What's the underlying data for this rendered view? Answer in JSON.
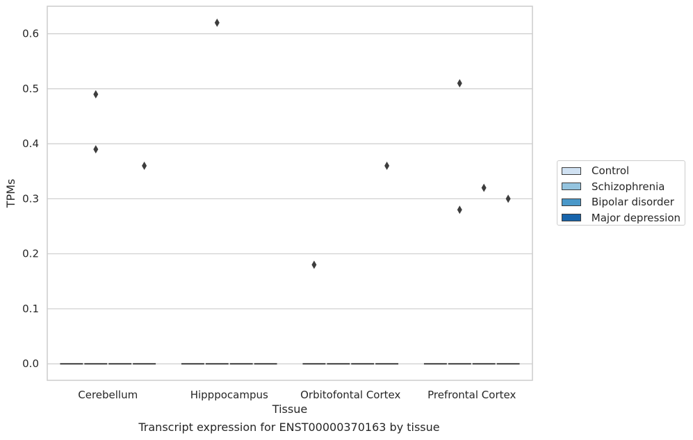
{
  "chart_data": {
    "type": "box",
    "title": "Transcript expression for ENST00000370163 by tissue",
    "xlabel": "Tissue",
    "ylabel": "TPMs",
    "ylim": [
      -0.03,
      0.65
    ],
    "yticks": [
      0.0,
      0.1,
      0.2,
      0.3,
      0.4,
      0.5,
      0.6
    ],
    "ytick_labels": [
      "0.0",
      "0.1",
      "0.2",
      "0.3",
      "0.4",
      "0.5",
      "0.6"
    ],
    "grid": true,
    "legend_position": "right",
    "categories": [
      "Cerebellum",
      "Hipppocampus",
      "Orbitofontal Cortex",
      "Prefrontal Cortex"
    ],
    "series": [
      {
        "name": "Control",
        "color": "#d0e1f2",
        "median": [
          0,
          0,
          0,
          0
        ]
      },
      {
        "name": "Schizophrenia",
        "color": "#94c4df",
        "median": [
          0,
          0,
          0,
          0
        ]
      },
      {
        "name": "Bipolar disorder",
        "color": "#4a98c9",
        "median": [
          0,
          0,
          0,
          0
        ]
      },
      {
        "name": "Major depression",
        "color": "#1764ab",
        "median": [
          0,
          0,
          0,
          0
        ]
      }
    ],
    "outliers": [
      {
        "category": "Cerebellum",
        "series": "Schizophrenia",
        "value": 0.49
      },
      {
        "category": "Cerebellum",
        "series": "Schizophrenia",
        "value": 0.39
      },
      {
        "category": "Cerebellum",
        "series": "Major depression",
        "value": 0.36
      },
      {
        "category": "Hipppocampus",
        "series": "Schizophrenia",
        "value": 0.62
      },
      {
        "category": "Orbitofontal Cortex",
        "series": "Control",
        "value": 0.18
      },
      {
        "category": "Orbitofontal Cortex",
        "series": "Major depression",
        "value": 0.36
      },
      {
        "category": "Prefrontal Cortex",
        "series": "Schizophrenia",
        "value": 0.51
      },
      {
        "category": "Prefrontal Cortex",
        "series": "Schizophrenia",
        "value": 0.28
      },
      {
        "category": "Prefrontal Cortex",
        "series": "Bipolar disorder",
        "value": 0.32
      },
      {
        "category": "Prefrontal Cortex",
        "series": "Major depression",
        "value": 0.3
      }
    ]
  }
}
